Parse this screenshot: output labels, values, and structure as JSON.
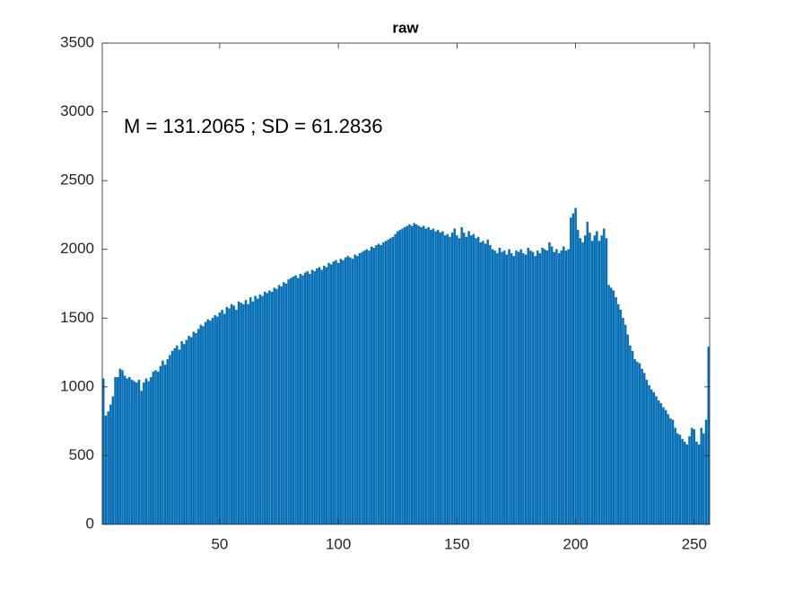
{
  "chart_data": {
    "type": "bar",
    "title": "raw",
    "annotation": "M = 131.2065 ; SD = 61.2836",
    "x": [
      1,
      2,
      3,
      4,
      5,
      6,
      7,
      8,
      9,
      10,
      11,
      12,
      13,
      14,
      15,
      16,
      17,
      18,
      19,
      20,
      21,
      22,
      23,
      24,
      25,
      26,
      27,
      28,
      29,
      30,
      31,
      32,
      33,
      34,
      35,
      36,
      37,
      38,
      39,
      40,
      41,
      42,
      43,
      44,
      45,
      46,
      47,
      48,
      49,
      50,
      51,
      52,
      53,
      54,
      55,
      56,
      57,
      58,
      59,
      60,
      61,
      62,
      63,
      64,
      65,
      66,
      67,
      68,
      69,
      70,
      71,
      72,
      73,
      74,
      75,
      76,
      77,
      78,
      79,
      80,
      81,
      82,
      83,
      84,
      85,
      86,
      87,
      88,
      89,
      90,
      91,
      92,
      93,
      94,
      95,
      96,
      97,
      98,
      99,
      100,
      101,
      102,
      103,
      104,
      105,
      106,
      107,
      108,
      109,
      110,
      111,
      112,
      113,
      114,
      115,
      116,
      117,
      118,
      119,
      120,
      121,
      122,
      123,
      124,
      125,
      126,
      127,
      128,
      129,
      130,
      131,
      132,
      133,
      134,
      135,
      136,
      137,
      138,
      139,
      140,
      141,
      142,
      143,
      144,
      145,
      146,
      147,
      148,
      149,
      150,
      151,
      152,
      153,
      154,
      155,
      156,
      157,
      158,
      159,
      160,
      161,
      162,
      163,
      164,
      165,
      166,
      167,
      168,
      169,
      170,
      171,
      172,
      173,
      174,
      175,
      176,
      177,
      178,
      179,
      180,
      181,
      182,
      183,
      184,
      185,
      186,
      187,
      188,
      189,
      190,
      191,
      192,
      193,
      194,
      195,
      196,
      197,
      198,
      199,
      200,
      201,
      202,
      203,
      204,
      205,
      206,
      207,
      208,
      209,
      210,
      211,
      212,
      213,
      214,
      215,
      216,
      217,
      218,
      219,
      220,
      221,
      222,
      223,
      224,
      225,
      226,
      227,
      228,
      229,
      230,
      231,
      232,
      233,
      234,
      235,
      236,
      237,
      238,
      239,
      240,
      241,
      242,
      243,
      244,
      245,
      246,
      247,
      248,
      249,
      250,
      251,
      252,
      253,
      254,
      255,
      256
    ],
    "values": [
      1060,
      790,
      820,
      870,
      930,
      1070,
      1070,
      1130,
      1120,
      1080,
      1060,
      1070,
      1050,
      1040,
      1030,
      1050,
      970,
      1030,
      1060,
      1040,
      1070,
      1110,
      1120,
      1110,
      1150,
      1190,
      1160,
      1200,
      1230,
      1260,
      1280,
      1300,
      1270,
      1330,
      1310,
      1340,
      1370,
      1360,
      1400,
      1390,
      1420,
      1450,
      1440,
      1470,
      1490,
      1480,
      1500,
      1520,
      1510,
      1540,
      1560,
      1530,
      1580,
      1570,
      1600,
      1590,
      1560,
      1620,
      1610,
      1600,
      1630,
      1600,
      1650,
      1620,
      1660,
      1640,
      1670,
      1660,
      1690,
      1680,
      1700,
      1690,
      1720,
      1710,
      1740,
      1730,
      1760,
      1750,
      1780,
      1790,
      1800,
      1810,
      1790,
      1820,
      1810,
      1830,
      1840,
      1820,
      1850,
      1840,
      1860,
      1870,
      1850,
      1880,
      1870,
      1900,
      1890,
      1910,
      1920,
      1900,
      1930,
      1920,
      1940,
      1950,
      1940,
      1930,
      1960,
      1950,
      1970,
      1980,
      1990,
      2000,
      1990,
      2020,
      2010,
      2030,
      2040,
      2030,
      2050,
      2060,
      2070,
      2080,
      2090,
      2110,
      2130,
      2140,
      2150,
      2160,
      2170,
      2180,
      2170,
      2190,
      2180,
      2170,
      2160,
      2170,
      2150,
      2160,
      2140,
      2150,
      2130,
      2140,
      2120,
      2130,
      2100,
      2110,
      2090,
      2120,
      2150,
      2100,
      2080,
      2160,
      2120,
      2090,
      2130,
      2100,
      2110,
      2080,
      2090,
      2050,
      2060,
      2040,
      2070,
      2030,
      2000,
      1990,
      1970,
      2010,
      1980,
      1990,
      1960,
      2000,
      1970,
      1950,
      1990,
      1980,
      2000,
      1970,
      1960,
      2010,
      1990,
      1980,
      1950,
      1990,
      1970,
      2010,
      2000,
      1990,
      2050,
      2020,
      1980,
      2000,
      1970,
      1990,
      2020,
      1990,
      2000,
      2230,
      2260,
      2300,
      2140,
      2080,
      2050,
      2100,
      2200,
      2120,
      2060,
      2100,
      2130,
      2060,
      2100,
      2150,
      2080,
      1740,
      1720,
      1700,
      1650,
      1600,
      1560,
      1500,
      1450,
      1380,
      1300,
      1260,
      1200,
      1180,
      1170,
      1130,
      1100,
      1050,
      1010,
      980,
      960,
      930,
      900,
      880,
      850,
      830,
      800,
      770,
      760,
      700,
      660,
      650,
      620,
      600,
      580,
      640,
      700,
      690,
      600,
      580,
      700,
      660,
      760,
      1290
    ],
    "color": "#0072bd",
    "xlim": [
      0.5,
      256.5
    ],
    "xticks": [
      50,
      100,
      150,
      200,
      250
    ],
    "ylim": [
      0,
      3500
    ],
    "yticks": [
      0,
      500,
      1000,
      1500,
      2000,
      2500,
      3000,
      3500
    ]
  }
}
